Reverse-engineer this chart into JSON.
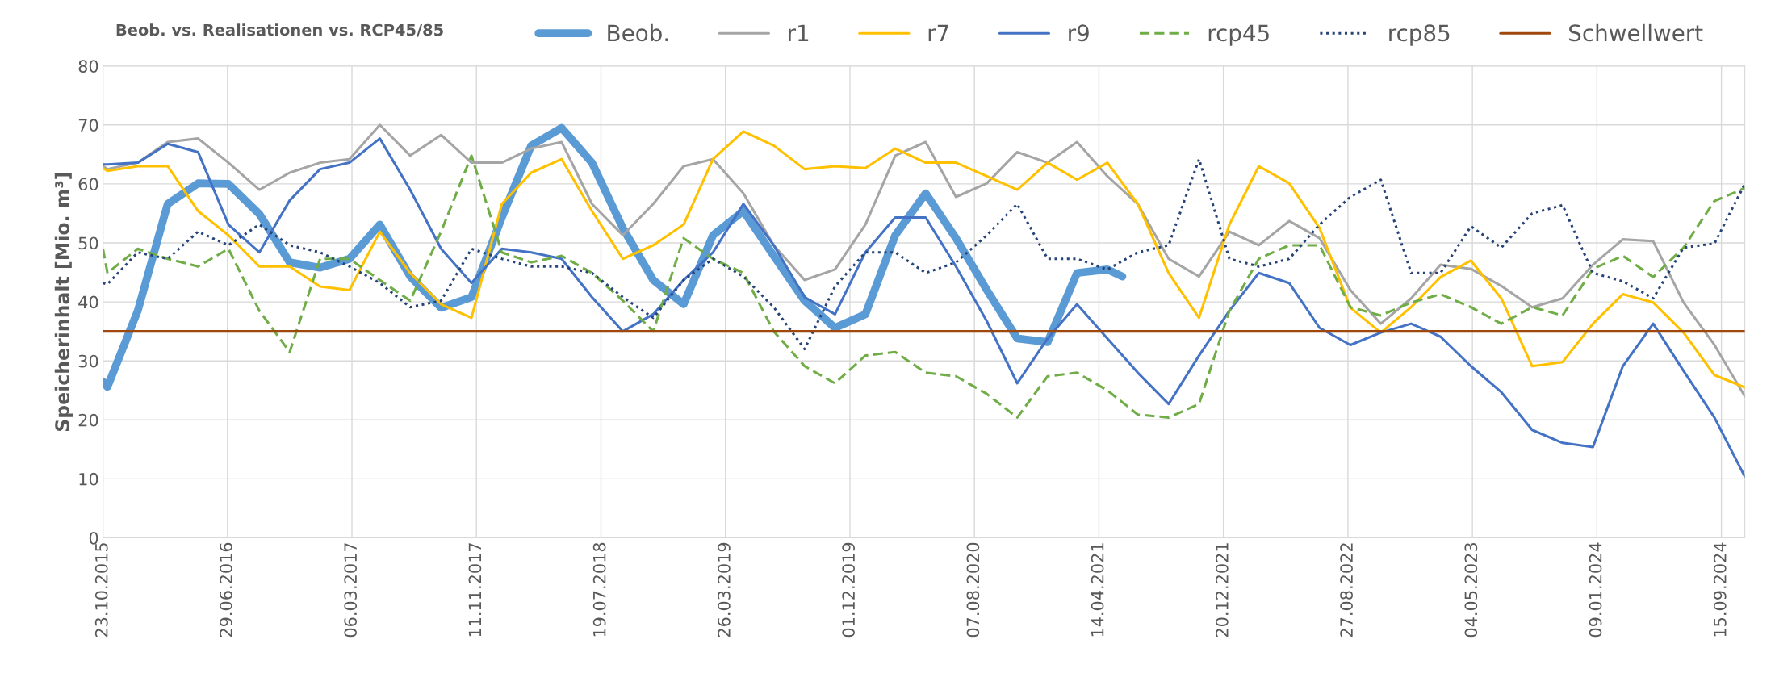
{
  "chart_data": {
    "type": "line",
    "title": "Beob. vs. Realisationen vs. RCP45/85",
    "ylabel": "Speicherinhalt [Mio. m³]",
    "x": [
      "2015-10-23",
      "2015-11-01",
      "2016-01-01",
      "2016-03-01",
      "2016-05-01",
      "2016-07-01",
      "2016-09-01",
      "2016-11-01",
      "2017-01-01",
      "2017-03-01",
      "2017-05-01",
      "2017-07-01",
      "2017-09-01",
      "2017-11-01",
      "2018-01-01",
      "2018-03-01",
      "2018-05-01",
      "2018-07-01",
      "2018-09-01",
      "2018-11-01",
      "2019-01-01",
      "2019-03-01",
      "2019-05-01",
      "2019-07-01",
      "2019-09-01",
      "2019-11-01",
      "2020-01-01",
      "2020-03-01",
      "2020-05-01",
      "2020-07-01",
      "2020-09-01",
      "2020-11-01",
      "2021-01-01",
      "2021-03-01",
      "2021-05-01",
      "2021-07-01",
      "2021-09-01",
      "2021-11-01",
      "2022-01-01",
      "2022-03-01",
      "2022-05-01",
      "2022-07-01",
      "2022-09-01",
      "2022-11-01",
      "2023-01-01",
      "2023-03-01",
      "2023-05-01",
      "2023-07-01",
      "2023-09-01",
      "2023-11-01",
      "2024-01-01",
      "2024-03-01",
      "2024-05-01",
      "2024-07-01",
      "2024-09-01",
      "2024-11-01"
    ],
    "series": [
      {
        "name": "Beob.",
        "color": "#5b9bd5",
        "line_style": "solid",
        "x": [
          "2015-10-23",
          "2015-11-01",
          "2016-01-01",
          "2016-03-01",
          "2016-05-01",
          "2016-07-01",
          "2016-09-01",
          "2016-11-01",
          "2017-01-01",
          "2017-03-01",
          "2017-05-01",
          "2017-07-01",
          "2017-09-01",
          "2017-11-01",
          "2018-01-01",
          "2018-03-01",
          "2018-05-01",
          "2018-07-01",
          "2018-09-01",
          "2018-11-01",
          "2019-01-01",
          "2019-03-01",
          "2019-05-01",
          "2019-07-01",
          "2019-09-01",
          "2019-11-01",
          "2020-01-01",
          "2020-03-01",
          "2020-05-01",
          "2020-07-01",
          "2020-09-01",
          "2020-11-01",
          "2021-01-01",
          "2021-03-01",
          "2021-05-01",
          "2021-05-31"
        ],
        "values": [
          26.5,
          25.6,
          38.5,
          56.6,
          60.1,
          60,
          54.9,
          46.7,
          45.8,
          47.3,
          53.1,
          44.3,
          39,
          40.8,
          54.3,
          66.5,
          69.5,
          63.6,
          52.5,
          43.7,
          39.6,
          51.3,
          55.4,
          47.8,
          40.2,
          35.6,
          37.9,
          51.3,
          58.4,
          50.8,
          42,
          33.8,
          33.2,
          44.9,
          45.5,
          44.3
        ]
      },
      {
        "name": "r1",
        "color": "#a5a5a5",
        "line_style": "solid",
        "values": [
          63,
          62.5,
          63.6,
          67.1,
          67.7,
          63.6,
          59,
          61.9,
          63.6,
          64.2,
          70,
          64.8,
          68.3,
          63.6,
          63.6,
          66,
          67.1,
          56.6,
          51.3,
          56.6,
          63,
          64.2,
          58.4,
          49.6,
          43.7,
          45.5,
          53.1,
          64.8,
          67.1,
          57.8,
          60.1,
          65.4,
          63.6,
          67.1,
          61.3,
          56.6,
          47.3,
          44.3,
          51.9,
          49.6,
          53.7,
          50.8,
          42,
          36.3,
          40.6,
          46.3,
          45.6,
          42.7,
          39.1,
          40.6,
          46.3,
          50.6,
          50.3,
          39.9,
          32.7,
          24
        ]
      },
      {
        "name": "r7",
        "color": "#ffc000",
        "line_style": "solid",
        "values": [
          62.7,
          62.2,
          63,
          63,
          55.4,
          51.3,
          46,
          46,
          42.6,
          42,
          51.9,
          44.9,
          39.6,
          37.3,
          56.6,
          61.9,
          64.2,
          55.4,
          47.3,
          49.6,
          53.1,
          64.2,
          68.9,
          66.5,
          62.5,
          63,
          62.7,
          66,
          63.6,
          63.6,
          61.3,
          59,
          63.6,
          60.7,
          63.6,
          56.6,
          44.9,
          37.3,
          53.1,
          63,
          60.1,
          52.5,
          39,
          34.8,
          39.1,
          44.2,
          47,
          40.6,
          29.1,
          29.8,
          36.3,
          41.3,
          39.9,
          34.8,
          27.6,
          25.5
        ]
      },
      {
        "name": "r9",
        "color": "#4472c4",
        "line_style": "solid",
        "values": [
          63.3,
          63.3,
          63.6,
          66.8,
          65.4,
          53.1,
          48.4,
          57.2,
          62.5,
          63.6,
          67.7,
          59,
          49,
          43.2,
          49,
          48.4,
          47.3,
          40.8,
          35,
          37.9,
          43.7,
          48.4,
          56.6,
          49.6,
          40.8,
          37.9,
          48.4,
          54.3,
          54.3,
          46,
          36.7,
          26.2,
          33.8,
          39.6,
          33.8,
          28,
          22.7,
          30.9,
          38.5,
          44.9,
          43.2,
          35.6,
          32.7,
          34.8,
          36.3,
          34.1,
          29.1,
          24.7,
          18.3,
          16.1,
          15.4,
          29.1,
          36.3,
          28.3,
          20.4,
          10.4
        ]
      },
      {
        "name": "rcp45",
        "color": "#70ad47",
        "line_style": "dashed",
        "values": [
          49,
          44.9,
          49,
          47.3,
          46,
          49,
          38.5,
          31.5,
          47.3,
          47.3,
          43.7,
          40.2,
          51.9,
          64.8,
          48.4,
          46.7,
          47.8,
          44.9,
          40.2,
          35,
          50.8,
          47.3,
          44.9,
          35,
          29.1,
          26.2,
          30.9,
          31.5,
          28,
          27.4,
          24.4,
          20.4,
          27.4,
          28,
          25,
          20.9,
          20.4,
          22.7,
          38.5,
          47.3,
          49.6,
          49.6,
          39.1,
          37.7,
          39.9,
          41.3,
          39.1,
          36.3,
          39.1,
          37.7,
          45.6,
          47.8,
          44.2,
          49.2,
          57.1,
          59.3
        ]
      },
      {
        "name": "rcp85",
        "color": "#264478",
        "line_style": "dotted",
        "values": [
          43.2,
          43,
          48.4,
          47.3,
          51.9,
          49.6,
          53.1,
          49.6,
          48.4,
          46,
          43.2,
          39.1,
          40.2,
          49,
          47.3,
          46,
          46,
          44.9,
          40.8,
          37.3,
          43.7,
          47.3,
          44.3,
          39.1,
          32,
          42.6,
          48.4,
          48.4,
          44.9,
          46.7,
          51.3,
          56.6,
          47.3,
          47.3,
          45.5,
          48.4,
          49.6,
          64.2,
          47.3,
          46,
          47.3,
          53.1,
          57.8,
          60.7,
          44.9,
          44.9,
          52.8,
          49.2,
          55,
          56.4,
          44.9,
          43.5,
          40.6,
          49.2,
          49.9,
          60
        ]
      },
      {
        "name": "Schwellwert",
        "color": "#9e480e",
        "line_style": "solid",
        "x": [
          "2015-10-23",
          "2024-11-01"
        ],
        "values": [
          35,
          35
        ]
      }
    ],
    "xlim": [
      "2015-10-23",
      "2024-11-01"
    ],
    "xticks": [
      {
        "value": "2015-10-23",
        "label": "23.10.2015"
      },
      {
        "value": "2016-06-29",
        "label": "29.06.2016"
      },
      {
        "value": "2017-03-06",
        "label": "06.03.2017"
      },
      {
        "value": "2017-11-11",
        "label": "11.11.2017"
      },
      {
        "value": "2018-07-19",
        "label": "19.07.2018"
      },
      {
        "value": "2019-03-26",
        "label": "26.03.2019"
      },
      {
        "value": "2019-12-01",
        "label": "01.12.2019"
      },
      {
        "value": "2020-08-07",
        "label": "07.08.2020"
      },
      {
        "value": "2021-04-14",
        "label": "14.04.2021"
      },
      {
        "value": "2021-12-20",
        "label": "20.12.2021"
      },
      {
        "value": "2022-08-27",
        "label": "27.08.2022"
      },
      {
        "value": "2023-05-04",
        "label": "04.05.2023"
      },
      {
        "value": "2024-01-09",
        "label": "09.01.2024"
      },
      {
        "value": "2024-09-15",
        "label": "15.09.2024"
      }
    ],
    "ylim": [
      0,
      80
    ],
    "yticks": [
      0,
      10,
      20,
      30,
      40,
      50,
      60,
      70,
      80
    ],
    "grid": true,
    "legend": "top",
    "marker": "none"
  }
}
